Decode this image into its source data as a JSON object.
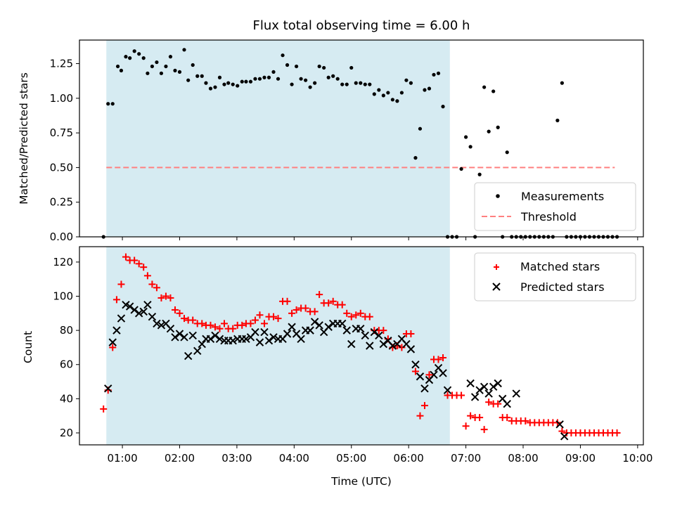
{
  "chart_data": [
    {
      "type": "scatter",
      "title": "Flux total observing time = 6.00 h",
      "xlabel": "",
      "ylabel": "Matched/Predicted stars",
      "xlim": [
        0.25,
        10.1
      ],
      "ylim": [
        0,
        1.42
      ],
      "yticks": [
        0.0,
        0.25,
        0.5,
        0.75,
        1.0,
        1.25
      ],
      "ytick_labels": [
        "0.00",
        "0.25",
        "0.50",
        "0.75",
        "1.00",
        "1.25"
      ],
      "shaded_span": [
        0.72,
        6.72
      ],
      "shade_color": "#add8e6",
      "threshold": {
        "name": "Threshold",
        "y": 0.5,
        "x": [
          0.72,
          9.6
        ],
        "color": "#ff8080"
      },
      "legend": {
        "placement": "lower-right",
        "entries": [
          "Measurements",
          "Threshold"
        ]
      },
      "series": [
        {
          "name": "Measurements",
          "color": "#000000",
          "marker": "dot",
          "x": [
            0.67,
            0.75,
            0.83,
            0.92,
            0.98,
            1.06,
            1.13,
            1.21,
            1.29,
            1.37,
            1.44,
            1.52,
            1.6,
            1.68,
            1.76,
            1.84,
            1.92,
            2.0,
            2.08,
            2.15,
            2.23,
            2.31,
            2.39,
            2.46,
            2.54,
            2.62,
            2.7,
            2.78,
            2.85,
            2.93,
            3.01,
            3.09,
            3.16,
            3.24,
            3.32,
            3.4,
            3.48,
            3.56,
            3.64,
            3.72,
            3.8,
            3.88,
            3.96,
            4.04,
            4.12,
            4.2,
            4.28,
            4.36,
            4.44,
            4.52,
            4.6,
            4.68,
            4.76,
            4.84,
            4.92,
            5.0,
            5.08,
            5.16,
            5.24,
            5.32,
            5.4,
            5.48,
            5.56,
            5.64,
            5.72,
            5.8,
            5.88,
            5.96,
            6.04,
            6.12,
            6.2,
            6.28,
            6.36,
            6.44,
            6.52,
            6.6,
            6.68,
            6.76,
            6.84,
            6.92,
            7.0,
            7.08,
            7.16,
            7.24,
            7.32,
            7.4,
            7.48,
            7.56,
            7.64,
            7.72,
            7.8,
            7.88,
            7.96,
            8.04,
            8.12,
            8.2,
            8.28,
            8.36,
            8.44,
            8.52,
            8.6,
            8.68,
            8.76,
            8.84,
            8.92,
            9.0,
            9.08,
            9.16,
            9.24,
            9.32,
            9.4,
            9.48,
            9.56,
            9.64
          ],
          "y": [
            0.0,
            0.96,
            0.96,
            1.23,
            1.2,
            1.3,
            1.29,
            1.34,
            1.32,
            1.29,
            1.18,
            1.23,
            1.26,
            1.18,
            1.23,
            1.3,
            1.2,
            1.19,
            1.35,
            1.13,
            1.24,
            1.16,
            1.16,
            1.11,
            1.07,
            1.08,
            1.15,
            1.1,
            1.11,
            1.1,
            1.09,
            1.12,
            1.12,
            1.12,
            1.14,
            1.14,
            1.15,
            1.15,
            1.19,
            1.14,
            1.31,
            1.24,
            1.1,
            1.23,
            1.14,
            1.13,
            1.08,
            1.11,
            1.23,
            1.22,
            1.15,
            1.16,
            1.14,
            1.1,
            1.1,
            1.22,
            1.11,
            1.11,
            1.1,
            1.1,
            1.03,
            1.06,
            1.02,
            1.04,
            0.99,
            0.98,
            1.04,
            1.13,
            1.11,
            0.57,
            0.78,
            1.06,
            1.07,
            1.17,
            1.18,
            0.94,
            0.0,
            0.0,
            0.0,
            0.49,
            0.72,
            0.65,
            0.0,
            0.45,
            1.08,
            0.76,
            1.05,
            0.79,
            0.0,
            0.61,
            0.0,
            0.0,
            0.0,
            0.0,
            0.0,
            0.0,
            0.0,
            0.0,
            0.0,
            0.0,
            0.84,
            1.11,
            0.0,
            0.0,
            0.0,
            0.0,
            0.0,
            0.0,
            0.0,
            0.0,
            0.0,
            0.0,
            0.0,
            0.0
          ]
        }
      ]
    },
    {
      "type": "scatter",
      "title": "",
      "xlabel": "Time (UTC)",
      "ylabel": "Count",
      "xlim": [
        0.25,
        10.1
      ],
      "ylim": [
        13,
        129
      ],
      "yticks": [
        20,
        40,
        60,
        80,
        100,
        120
      ],
      "xticks": [
        1,
        2,
        3,
        4,
        5,
        6,
        7,
        8,
        9,
        10
      ],
      "xtick_labels": [
        "01:00",
        "02:00",
        "03:00",
        "04:00",
        "05:00",
        "06:00",
        "07:00",
        "08:00",
        "09:00",
        "10:00"
      ],
      "shaded_span": [
        0.72,
        6.72
      ],
      "shade_color": "#add8e6",
      "legend": {
        "placement": "top-right",
        "entries": [
          "Matched stars",
          "Predicted stars"
        ]
      },
      "series": [
        {
          "name": "Matched stars",
          "color": "#ff0000",
          "marker": "plus",
          "x": [
            0.67,
            0.75,
            0.83,
            0.9,
            0.98,
            1.06,
            1.13,
            1.21,
            1.29,
            1.37,
            1.44,
            1.52,
            1.6,
            1.68,
            1.76,
            1.84,
            1.92,
            2.0,
            2.08,
            2.15,
            2.23,
            2.31,
            2.39,
            2.46,
            2.54,
            2.62,
            2.7,
            2.78,
            2.85,
            2.93,
            3.01,
            3.09,
            3.16,
            3.24,
            3.32,
            3.4,
            3.48,
            3.56,
            3.64,
            3.72,
            3.8,
            3.88,
            3.96,
            4.04,
            4.12,
            4.2,
            4.28,
            4.36,
            4.44,
            4.52,
            4.6,
            4.68,
            4.76,
            4.84,
            4.92,
            5.0,
            5.08,
            5.16,
            5.24,
            5.32,
            5.4,
            5.48,
            5.56,
            5.64,
            5.72,
            5.8,
            5.88,
            5.96,
            6.04,
            6.12,
            6.2,
            6.28,
            6.36,
            6.44,
            6.52,
            6.6,
            6.68,
            6.76,
            6.84,
            6.92,
            7.0,
            7.08,
            7.16,
            7.24,
            7.32,
            7.4,
            7.48,
            7.56,
            7.64,
            7.72,
            7.8,
            7.88,
            7.96,
            8.04,
            8.12,
            8.2,
            8.28,
            8.36,
            8.44,
            8.52,
            8.6,
            8.68,
            8.76,
            8.84,
            8.92,
            9.0,
            9.08,
            9.16,
            9.24,
            9.32,
            9.4,
            9.48,
            9.56,
            9.64
          ],
          "y": [
            34,
            45,
            70,
            98,
            107,
            123,
            121,
            121,
            119,
            117,
            112,
            107,
            105,
            99,
            100,
            99,
            92,
            90,
            87,
            86,
            86,
            84,
            84,
            83,
            83,
            82,
            81,
            84,
            81,
            81,
            83,
            83,
            84,
            84,
            86,
            89,
            84,
            88,
            88,
            87,
            97,
            97,
            90,
            92,
            93,
            93,
            91,
            91,
            101,
            96,
            96,
            97,
            95,
            95,
            90,
            88,
            89,
            90,
            88,
            88,
            80,
            80,
            80,
            75,
            70,
            71,
            70,
            78,
            78,
            56,
            30,
            36,
            54,
            63,
            63,
            64,
            42,
            42,
            42,
            42,
            24,
            30,
            29,
            29,
            22,
            38,
            37,
            37,
            29,
            29,
            27,
            27,
            27,
            27,
            26,
            26,
            26,
            26,
            26,
            26,
            26,
            21,
            20,
            20,
            20,
            20,
            20,
            20,
            20,
            20,
            20,
            20,
            20,
            20
          ]
        },
        {
          "name": "Predicted stars",
          "color": "#000000",
          "marker": "x",
          "x": [
            0.75,
            0.83,
            0.9,
            0.98,
            1.06,
            1.13,
            1.21,
            1.29,
            1.37,
            1.44,
            1.52,
            1.6,
            1.68,
            1.76,
            1.84,
            1.92,
            2.0,
            2.08,
            2.15,
            2.23,
            2.31,
            2.39,
            2.46,
            2.54,
            2.62,
            2.7,
            2.78,
            2.85,
            2.93,
            3.01,
            3.09,
            3.16,
            3.24,
            3.32,
            3.4,
            3.48,
            3.56,
            3.64,
            3.72,
            3.8,
            3.88,
            3.96,
            4.04,
            4.12,
            4.2,
            4.28,
            4.36,
            4.44,
            4.52,
            4.6,
            4.68,
            4.76,
            4.84,
            4.92,
            5.0,
            5.08,
            5.16,
            5.24,
            5.32,
            5.4,
            5.48,
            5.56,
            5.64,
            5.72,
            5.8,
            5.88,
            5.96,
            6.04,
            6.12,
            6.2,
            6.28,
            6.36,
            6.44,
            6.52,
            6.6,
            6.68,
            7.08,
            7.16,
            7.24,
            7.32,
            7.4,
            7.48,
            7.56,
            7.64,
            7.72,
            7.88,
            8.64,
            8.72
          ],
          "y": [
            46,
            73,
            80,
            87,
            95,
            94,
            92,
            90,
            91,
            95,
            88,
            84,
            83,
            84,
            81,
            76,
            78,
            76,
            65,
            77,
            68,
            72,
            75,
            75,
            77,
            75,
            74,
            74,
            74,
            75,
            75,
            75,
            76,
            79,
            73,
            79,
            74,
            76,
            75,
            75,
            78,
            82,
            78,
            75,
            80,
            80,
            85,
            83,
            79,
            82,
            84,
            84,
            84,
            80,
            72,
            81,
            81,
            77,
            71,
            79,
            77,
            72,
            74,
            71,
            72,
            75,
            72,
            69,
            60,
            53,
            46,
            51,
            54,
            58,
            55,
            45,
            49,
            41,
            45,
            47,
            43,
            47,
            49,
            40,
            37,
            43,
            25,
            18
          ]
        }
      ]
    }
  ]
}
